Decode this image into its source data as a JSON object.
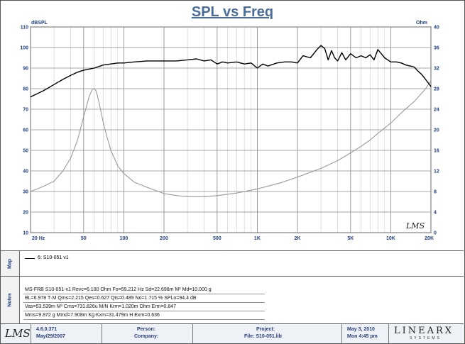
{
  "chart_data": {
    "type": "line",
    "title": "SPL vs Freq",
    "x_scale": "log",
    "xlim": [
      20,
      20000
    ],
    "x_tick_labels": [
      {
        "value": 20,
        "label": "20  Hz"
      },
      {
        "value": 50,
        "label": "50"
      },
      {
        "value": 100,
        "label": "100"
      },
      {
        "value": 200,
        "label": "200"
      },
      {
        "value": 500,
        "label": "500"
      },
      {
        "value": 1000,
        "label": "1K"
      },
      {
        "value": 2000,
        "label": "2K"
      },
      {
        "value": 5000,
        "label": "5K"
      },
      {
        "value": 10000,
        "label": "10K"
      },
      {
        "value": 20000,
        "label": "20K"
      }
    ],
    "y_left": {
      "label": "dBSPL",
      "lim": [
        10,
        110
      ],
      "ticks": [
        10,
        20,
        30,
        40,
        50,
        60,
        70,
        80,
        90,
        100,
        110
      ]
    },
    "y_right": {
      "label": "Ohm",
      "lim": [
        0,
        40
      ],
      "ticks": [
        0,
        4,
        8,
        12,
        16,
        20,
        24,
        28,
        32,
        36,
        40
      ]
    },
    "grid": true,
    "series": [
      {
        "name": "6: S10-051 v1",
        "axis": "left",
        "color": "#000000",
        "x": [
          20,
          25,
          30,
          35,
          40,
          45,
          50,
          55,
          60,
          70,
          80,
          90,
          100,
          120,
          150,
          200,
          250,
          300,
          350,
          400,
          450,
          500,
          550,
          600,
          700,
          800,
          900,
          1000,
          1100,
          1200,
          1400,
          1600,
          1800,
          2000,
          2200,
          2500,
          2800,
          3000,
          3200,
          3400,
          3600,
          3800,
          4000,
          4300,
          4600,
          5000,
          5500,
          6000,
          6500,
          7000,
          7500,
          8000,
          8500,
          9000,
          10000,
          11000,
          12000,
          13000,
          14000,
          15000,
          16000,
          17000,
          18000,
          19000,
          20000
        ],
        "values": [
          76,
          79,
          82,
          84.5,
          86.5,
          88,
          89,
          89.5,
          90,
          91.5,
          92,
          92.5,
          92.5,
          93,
          93.5,
          93.5,
          93.5,
          94,
          94.5,
          93.5,
          94,
          92,
          93,
          92.5,
          93,
          92,
          92.5,
          90,
          92,
          91,
          92.5,
          93,
          93,
          92.5,
          96,
          95,
          99,
          101,
          99.5,
          94,
          98.5,
          95,
          93.5,
          97.5,
          94,
          97,
          95,
          96,
          95,
          96.5,
          94,
          99,
          97,
          95,
          93,
          93,
          92.5,
          91.5,
          91,
          90.5,
          88.5,
          87,
          85,
          83,
          81
        ]
      },
      {
        "name": "",
        "axis": "right",
        "color": "#9a9a9a",
        "x": [
          20,
          25,
          30,
          35,
          40,
          45,
          50,
          55,
          58,
          60,
          62,
          65,
          70,
          75,
          80,
          90,
          100,
          120,
          150,
          200,
          250,
          300,
          400,
          500,
          700,
          1000,
          1500,
          2000,
          3000,
          4000,
          5000,
          6000,
          7000,
          8000,
          10000,
          12000,
          15000,
          18000,
          20000
        ],
        "values": [
          8,
          9,
          10,
          12,
          14.5,
          18,
          22.5,
          26.5,
          27.8,
          28,
          27.6,
          25.5,
          21.5,
          18.5,
          16,
          13,
          11.5,
          9.8,
          8.8,
          7.6,
          7.2,
          7.0,
          7.0,
          7.2,
          7.7,
          8.5,
          9.7,
          10.8,
          12.5,
          14,
          15.5,
          16.8,
          18,
          19.3,
          21.3,
          23.3,
          25.5,
          27.8,
          29.5
        ]
      }
    ]
  },
  "panels": {
    "map_label": "Map",
    "notes_label": "Notes",
    "legend_entry": "6: S10-051 v1",
    "notes": [
      "MS-FRB  S10-051-v1  Revc=6.100 Ohm  Fo=59.212 Hz  Sd=22.698m M² Md=10.000 g",
      "BL=6.978 T·M  Qms=2.215  Qes=0.627  Qts=0.489  No=1.715 %  SPLo=94.4 dB",
      "Vas=53.539m M³  Cms=731.826u M/N  Krm=1.020m Ohm  Erm=0.847",
      "Mms=9.872 g  Mmd=7.908m Kg  Kxm=31.479m H  Exm=0.636"
    ]
  },
  "footer": {
    "logo": "LMS",
    "version": "4.6.0.371",
    "version_date": "May/29/2007",
    "person_label": "Person:",
    "company_label": "Company:",
    "project_label": "Project:",
    "file_label": "File: S10-051.lib",
    "date": "May 3, 2010",
    "time": "Mon  4:45 pm",
    "brand": "LINEARX",
    "brand_sub": "SYSTEMS"
  },
  "watermark": "LMS"
}
